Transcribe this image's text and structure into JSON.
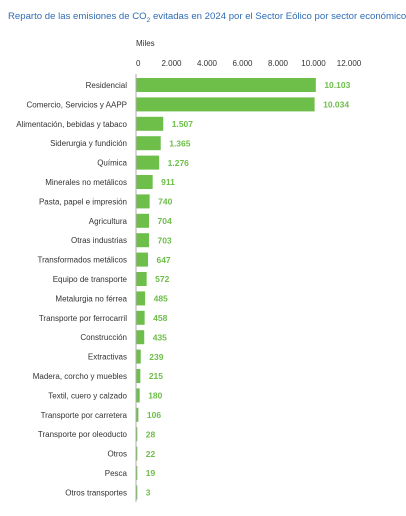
{
  "chart_data": {
    "type": "bar",
    "orientation": "horizontal",
    "title": {
      "prefix": "Reparto de las emisiones de CO",
      "subscript": "2",
      "suffix": " evitadas en 2024 por el Sector Eólico por sector económico"
    },
    "axis_unit_label": "Miles",
    "xlim": [
      0,
      12000
    ],
    "ticks": [
      0,
      2000,
      4000,
      6000,
      8000,
      10000,
      12000
    ],
    "tick_labels": [
      "0",
      "2.000",
      "4.000",
      "6.000",
      "8.000",
      "10.000",
      "12.000"
    ],
    "grid": false,
    "categories": [
      "Residencial",
      "Comercio, Servicios y AAPP",
      "Alimentación, bebidas y tabaco",
      "Siderurgia y fundición",
      "Química",
      "Minerales no metálicos",
      "Pasta, papel e impresión",
      "Agricultura",
      "Otras industrias",
      "Transformados metálicos",
      "Equipo de transporte",
      "Metalurgia no férrea",
      "Transporte por ferrocarril",
      "Construcción",
      "Extractivas",
      "Madera, corcho y muebles",
      "Textil, cuero y calzado",
      "Transporte por carretera",
      "Transporte por oleoducto",
      "Otros",
      "Pesca",
      "Otros transportes"
    ],
    "values": [
      10103,
      10034,
      1507,
      1365,
      1276,
      911,
      740,
      704,
      703,
      647,
      572,
      485,
      458,
      435,
      239,
      215,
      180,
      106,
      28,
      22,
      19,
      3
    ],
    "value_labels": [
      "10.103",
      "10.034",
      "1.507",
      "1.365",
      "1.276",
      "911",
      "740",
      "704",
      "703",
      "647",
      "572",
      "485",
      "458",
      "435",
      "239",
      "215",
      "180",
      "106",
      "28",
      "22",
      "19",
      "3"
    ],
    "colors": {
      "bar": "#6ebe4a",
      "value_label": "#6ebe4a",
      "title": "#2f6db3",
      "text": "#333333",
      "axis": "#999999"
    }
  }
}
